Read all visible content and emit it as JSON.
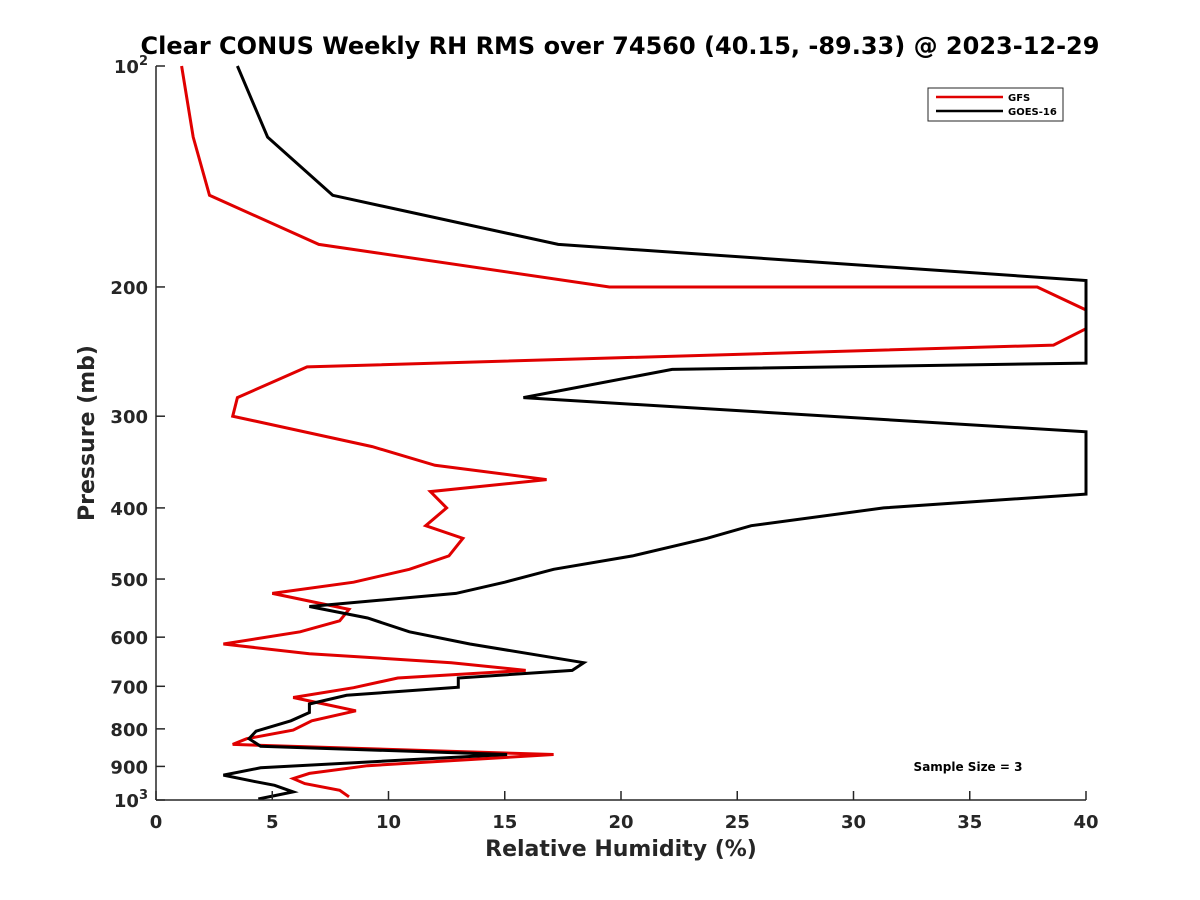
{
  "chart_data": {
    "type": "line",
    "title": "Clear CONUS Weekly RH RMS over 74560 (40.15, -89.33) @ 2023-12-29",
    "xlabel": "Relative Humidity (%)",
    "ylabel": "Pressure (mb)",
    "xlim": [
      0,
      40
    ],
    "ylim": [
      100,
      1000
    ],
    "y_scale": "log",
    "y_reversed": true,
    "grid": false,
    "legend_position": "top-right",
    "x_ticks": [
      0,
      5,
      10,
      15,
      20,
      25,
      30,
      35,
      40
    ],
    "x_tick_labels": [
      "0",
      "5",
      "10",
      "15",
      "20",
      "25",
      "30",
      "35",
      "40"
    ],
    "y_ticks": [
      100,
      200,
      300,
      400,
      500,
      600,
      700,
      800,
      900,
      1000
    ],
    "y_tick_labels": [
      "10^2",
      "200",
      "300",
      "400",
      "500",
      "600",
      "700",
      "800",
      "900",
      "10^3"
    ],
    "annotation": "Sample Size = 3",
    "series": [
      {
        "name": "GFS",
        "color": "#e00000",
        "points": [
          [
            1.1,
            100
          ],
          [
            1.6,
            125
          ],
          [
            2.3,
            150
          ],
          [
            7.0,
            175
          ],
          [
            19.5,
            200
          ],
          [
            37.9,
            200
          ],
          [
            40.0,
            215
          ],
          [
            40.0,
            228
          ],
          [
            38.6,
            240
          ],
          [
            6.5,
            257
          ],
          [
            3.5,
            283
          ],
          [
            3.3,
            300
          ],
          [
            9.3,
            330
          ],
          [
            12.0,
            350
          ],
          [
            16.8,
            366
          ],
          [
            11.8,
            380
          ],
          [
            12.5,
            400
          ],
          [
            11.6,
            423
          ],
          [
            13.2,
            440
          ],
          [
            12.6,
            465
          ],
          [
            10.9,
            485
          ],
          [
            8.5,
            505
          ],
          [
            5.0,
            523
          ],
          [
            8.3,
            550
          ],
          [
            7.9,
            570
          ],
          [
            6.2,
            590
          ],
          [
            2.9,
            613
          ],
          [
            6.6,
            632
          ],
          [
            12.7,
            650
          ],
          [
            15.9,
            666
          ],
          [
            10.4,
            682
          ],
          [
            8.5,
            703
          ],
          [
            5.9,
            725
          ],
          [
            7.3,
            741
          ],
          [
            8.6,
            756
          ],
          [
            6.7,
            780
          ],
          [
            5.9,
            803
          ],
          [
            3.9,
            825
          ],
          [
            3.3,
            840
          ],
          [
            17.1,
            867
          ],
          [
            9.1,
            898
          ],
          [
            6.6,
            920
          ],
          [
            5.9,
            935
          ],
          [
            6.4,
            950
          ],
          [
            7.9,
            970
          ],
          [
            8.3,
            990
          ]
        ]
      },
      {
        "name": "GOES-16",
        "color": "#000000",
        "points": [
          [
            3.5,
            100
          ],
          [
            4.8,
            125
          ],
          [
            7.6,
            150
          ],
          [
            17.3,
            175
          ],
          [
            40.0,
            196
          ],
          [
            40.0,
            254
          ],
          [
            22.2,
            259
          ],
          [
            15.8,
            283
          ],
          [
            40.0,
            315
          ],
          [
            40.0,
            383
          ],
          [
            31.3,
            400
          ],
          [
            25.6,
            423
          ],
          [
            23.7,
            440
          ],
          [
            20.5,
            465
          ],
          [
            17.1,
            485
          ],
          [
            15.0,
            505
          ],
          [
            12.9,
            523
          ],
          [
            6.6,
            545
          ],
          [
            9.1,
            565
          ],
          [
            10.9,
            590
          ],
          [
            13.5,
            613
          ],
          [
            18.4,
            650
          ],
          [
            17.9,
            666
          ],
          [
            13.0,
            682
          ],
          [
            13.0,
            702
          ],
          [
            8.2,
            720
          ],
          [
            6.6,
            740
          ],
          [
            6.6,
            760
          ],
          [
            5.8,
            780
          ],
          [
            4.3,
            806
          ],
          [
            4.0,
            825
          ],
          [
            4.5,
            845
          ],
          [
            15.1,
            867
          ],
          [
            4.5,
            904
          ],
          [
            2.9,
            925
          ],
          [
            4.2,
            943
          ],
          [
            5.1,
            955
          ],
          [
            5.9,
            975
          ],
          [
            4.4,
            997
          ]
        ]
      }
    ]
  }
}
